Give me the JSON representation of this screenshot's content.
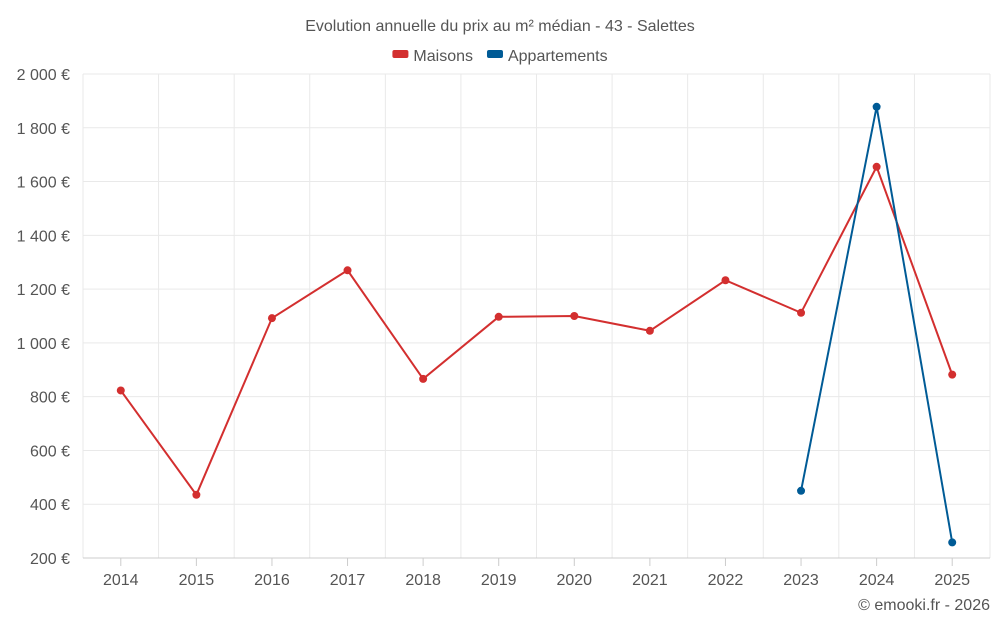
{
  "chart_data": {
    "type": "line",
    "title": "Evolution annuelle du prix au m² médian - 43 - Salettes",
    "categories": [
      "2014",
      "2015",
      "2016",
      "2017",
      "2018",
      "2019",
      "2020",
      "2021",
      "2022",
      "2023",
      "2024",
      "2025"
    ],
    "series": [
      {
        "name": "Maisons",
        "color": "#d32f2f",
        "values": [
          823,
          435,
          1092,
          1270,
          866,
          1097,
          1100,
          1045,
          1233,
          1112,
          1655,
          882
        ]
      },
      {
        "name": "Appartements",
        "color": "#005b96",
        "values": [
          null,
          null,
          null,
          null,
          null,
          null,
          null,
          null,
          null,
          450,
          1878,
          258
        ]
      }
    ],
    "ylim": [
      200,
      2000
    ],
    "yticks": [
      200,
      400,
      600,
      800,
      1000,
      1200,
      1400,
      1600,
      1800,
      2000
    ],
    "ytick_labels": [
      "200 €",
      "400 €",
      "600 €",
      "800 €",
      "1 000 €",
      "1 200 €",
      "1 400 €",
      "1 600 €",
      "1 800 €",
      "2 000 €"
    ],
    "grid": true,
    "legend": "top-center",
    "xlabel": "",
    "ylabel": ""
  },
  "credit": "© emooki.fr - 2026"
}
